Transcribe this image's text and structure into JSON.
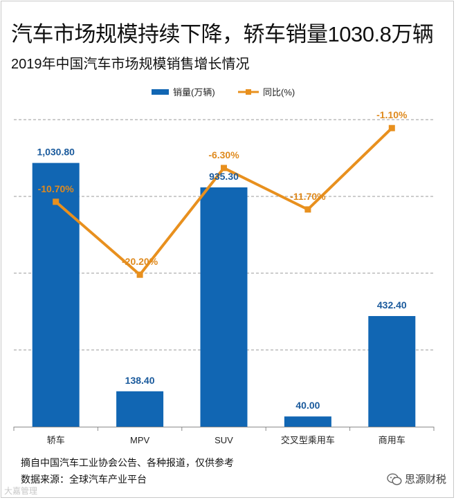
{
  "header": {
    "title": "汽车市场规模持续下降，轿车销量1030.8万辆",
    "subtitle": "2019年中国汽车市场规模销售增长情况"
  },
  "chart_data": {
    "type": "bar",
    "title": "汽车市场规模持续下降，轿车销量1030.8万辆",
    "subtitle": "2019年中国汽车市场规模销售增长情况",
    "categories": [
      "轿车",
      "MPV",
      "SUV",
      "交叉型乘用车",
      "商用车"
    ],
    "series": [
      {
        "name": "销量(万辆)",
        "type": "bar",
        "color": "#1166b3",
        "values": [
          1030.8,
          138.4,
          935.3,
          40.0,
          432.4
        ],
        "labels": [
          "1,030.80",
          "138.40",
          "935.30",
          "40.00",
          "432.40"
        ]
      },
      {
        "name": "同比(%)",
        "type": "line",
        "color": "#e8901e",
        "values": [
          -10.7,
          -20.2,
          -6.3,
          -11.7,
          -1.1
        ],
        "labels": [
          "-10.70%",
          "-20.20%",
          "-6.30%",
          "-11.70%",
          "-1.10%"
        ]
      }
    ],
    "legend": [
      "销量(万辆)",
      "同比(%)"
    ],
    "legend_position": "top",
    "ylim": [
      0,
      1200
    ],
    "y2lim": [
      -40,
      0
    ],
    "grid": true
  },
  "footer": {
    "note1": "摘自中国汽车工业协会公告、各种报道，仅供参考",
    "note2": "数据来源：全球汽车产业平台",
    "wechat_account": "思源财税",
    "watermark": "大嘉管理"
  }
}
